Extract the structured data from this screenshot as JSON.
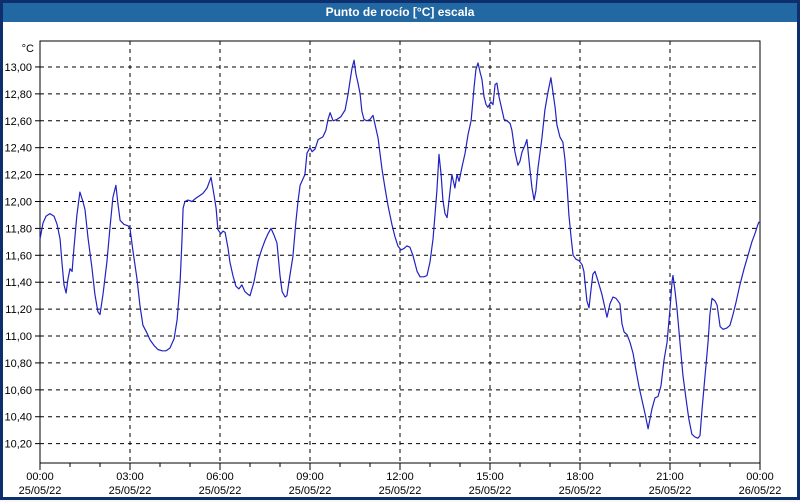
{
  "window": {
    "title": "Punto de rocío [°C] escala"
  },
  "colors": {
    "frame": "#0e2f6e",
    "titlebar_bg": "#2268a2",
    "title_text": "#ffffff",
    "plot_bg": "#ffffff",
    "grid": "#000000",
    "axis": "#000000",
    "tick_label": "#000000",
    "line": "#2222c2"
  },
  "chart_data": {
    "type": "line",
    "title": "Punto de rocío [°C] escala",
    "series_name": "Punto de rocío",
    "y_unit": "°C",
    "decimal_separator": ",",
    "grid": "dashed",
    "legend": "none",
    "ylim": [
      10.056,
      13.193
    ],
    "y_ticks": [
      13.0,
      12.8,
      12.6,
      12.4,
      12.2,
      12.0,
      11.8,
      11.6,
      11.4,
      11.2,
      11.0,
      10.8,
      10.6,
      10.4,
      10.2
    ],
    "x_range_hours": [
      0,
      24
    ],
    "x_minor_tick_every_hours": 1,
    "x_major_ticks": [
      {
        "hour": 0,
        "time": "00:00",
        "date": "25/05/22"
      },
      {
        "hour": 3,
        "time": "03:00",
        "date": "25/05/22"
      },
      {
        "hour": 6,
        "time": "06:00",
        "date": "25/05/22"
      },
      {
        "hour": 9,
        "time": "09:00",
        "date": "25/05/22"
      },
      {
        "hour": 12,
        "time": "12:00",
        "date": "25/05/22"
      },
      {
        "hour": 15,
        "time": "15:00",
        "date": "25/05/22"
      },
      {
        "hour": 18,
        "time": "18:00",
        "date": "25/05/22"
      },
      {
        "hour": 21,
        "time": "21:00",
        "date": "25/05/22"
      },
      {
        "hour": 24,
        "time": "00:00",
        "date": "26/05/22"
      }
    ],
    "points": [
      [
        0,
        11.72
      ],
      [
        0.1,
        11.84
      ],
      [
        0.2,
        11.89
      ],
      [
        0.33,
        11.91
      ],
      [
        0.47,
        11.89
      ],
      [
        0.57,
        11.83
      ],
      [
        0.67,
        11.72
      ],
      [
        0.73,
        11.55
      ],
      [
        0.8,
        11.38
      ],
      [
        0.87,
        11.32
      ],
      [
        0.93,
        11.42
      ],
      [
        1,
        11.5
      ],
      [
        1.07,
        11.48
      ],
      [
        1.13,
        11.65
      ],
      [
        1.23,
        11.9
      ],
      [
        1.33,
        12.07
      ],
      [
        1.43,
        12.0
      ],
      [
        1.5,
        11.94
      ],
      [
        1.6,
        11.73
      ],
      [
        1.73,
        11.51
      ],
      [
        1.83,
        11.31
      ],
      [
        1.93,
        11.18
      ],
      [
        2,
        11.16
      ],
      [
        2.1,
        11.31
      ],
      [
        2.23,
        11.55
      ],
      [
        2.33,
        11.8
      ],
      [
        2.43,
        12.03
      ],
      [
        2.53,
        12.12
      ],
      [
        2.6,
        11.98
      ],
      [
        2.67,
        11.86
      ],
      [
        2.8,
        11.83
      ],
      [
        2.93,
        11.82
      ],
      [
        3,
        11.8
      ],
      [
        3.1,
        11.63
      ],
      [
        3.23,
        11.43
      ],
      [
        3.33,
        11.23
      ],
      [
        3.43,
        11.08
      ],
      [
        3.57,
        11.02
      ],
      [
        3.67,
        10.97
      ],
      [
        3.8,
        10.93
      ],
      [
        3.93,
        10.9
      ],
      [
        4.07,
        10.89
      ],
      [
        4.2,
        10.89
      ],
      [
        4.33,
        10.91
      ],
      [
        4.47,
        10.98
      ],
      [
        4.57,
        11.12
      ],
      [
        4.67,
        11.4
      ],
      [
        4.73,
        11.7
      ],
      [
        4.77,
        11.95
      ],
      [
        4.83,
        12.0
      ],
      [
        4.93,
        12.01
      ],
      [
        5.07,
        12.0
      ],
      [
        5.17,
        12.02
      ],
      [
        5.3,
        12.04
      ],
      [
        5.43,
        12.06
      ],
      [
        5.57,
        12.1
      ],
      [
        5.7,
        12.18
      ],
      [
        5.8,
        12.05
      ],
      [
        5.87,
        11.95
      ],
      [
        5.93,
        11.79
      ],
      [
        6.03,
        11.76
      ],
      [
        6.1,
        11.78
      ],
      [
        6.17,
        11.77
      ],
      [
        6.27,
        11.65
      ],
      [
        6.33,
        11.55
      ],
      [
        6.43,
        11.45
      ],
      [
        6.53,
        11.37
      ],
      [
        6.63,
        11.35
      ],
      [
        6.73,
        11.38
      ],
      [
        6.83,
        11.33
      ],
      [
        6.93,
        11.31
      ],
      [
        7,
        11.3
      ],
      [
        7.13,
        11.4
      ],
      [
        7.27,
        11.56
      ],
      [
        7.4,
        11.65
      ],
      [
        7.5,
        11.71
      ],
      [
        7.6,
        11.76
      ],
      [
        7.7,
        11.8
      ],
      [
        7.8,
        11.75
      ],
      [
        7.9,
        11.69
      ],
      [
        8,
        11.45
      ],
      [
        8.07,
        11.33
      ],
      [
        8.17,
        11.29
      ],
      [
        8.23,
        11.3
      ],
      [
        8.33,
        11.45
      ],
      [
        8.43,
        11.59
      ],
      [
        8.53,
        11.85
      ],
      [
        8.6,
        12.0
      ],
      [
        8.67,
        12.12
      ],
      [
        8.77,
        12.17
      ],
      [
        8.83,
        12.2
      ],
      [
        8.9,
        12.36
      ],
      [
        9,
        12.4
      ],
      [
        9.07,
        12.37
      ],
      [
        9.17,
        12.39
      ],
      [
        9.27,
        12.46
      ],
      [
        9.43,
        12.48
      ],
      [
        9.53,
        12.53
      ],
      [
        9.6,
        12.61
      ],
      [
        9.67,
        12.66
      ],
      [
        9.77,
        12.6
      ],
      [
        9.9,
        12.61
      ],
      [
        10.03,
        12.63
      ],
      [
        10.17,
        12.68
      ],
      [
        10.27,
        12.8
      ],
      [
        10.33,
        12.89
      ],
      [
        10.4,
        12.99
      ],
      [
        10.47,
        13.05
      ],
      [
        10.53,
        12.95
      ],
      [
        10.6,
        12.88
      ],
      [
        10.67,
        12.8
      ],
      [
        10.73,
        12.67
      ],
      [
        10.8,
        12.61
      ],
      [
        10.9,
        12.6
      ],
      [
        11,
        12.61
      ],
      [
        11.1,
        12.64
      ],
      [
        11.17,
        12.57
      ],
      [
        11.27,
        12.47
      ],
      [
        11.4,
        12.24
      ],
      [
        11.5,
        12.1
      ],
      [
        11.6,
        11.97
      ],
      [
        11.73,
        11.83
      ],
      [
        11.83,
        11.74
      ],
      [
        11.93,
        11.67
      ],
      [
        12.03,
        11.64
      ],
      [
        12.13,
        11.65
      ],
      [
        12.23,
        11.67
      ],
      [
        12.33,
        11.66
      ],
      [
        12.43,
        11.6
      ],
      [
        12.57,
        11.48
      ],
      [
        12.67,
        11.44
      ],
      [
        12.8,
        11.44
      ],
      [
        12.9,
        11.45
      ],
      [
        13,
        11.55
      ],
      [
        13.1,
        11.72
      ],
      [
        13.17,
        11.91
      ],
      [
        13.23,
        12.08
      ],
      [
        13.3,
        12.35
      ],
      [
        13.37,
        12.2
      ],
      [
        13.43,
        12.01
      ],
      [
        13.5,
        11.91
      ],
      [
        13.57,
        11.88
      ],
      [
        13.67,
        12.08
      ],
      [
        13.73,
        12.2
      ],
      [
        13.83,
        12.1
      ],
      [
        13.9,
        12.2
      ],
      [
        13.97,
        12.15
      ],
      [
        14.07,
        12.26
      ],
      [
        14.17,
        12.36
      ],
      [
        14.27,
        12.5
      ],
      [
        14.37,
        12.6
      ],
      [
        14.47,
        12.85
      ],
      [
        14.53,
        12.98
      ],
      [
        14.6,
        13.03
      ],
      [
        14.67,
        12.96
      ],
      [
        14.73,
        12.91
      ],
      [
        14.8,
        12.78
      ],
      [
        14.87,
        12.72
      ],
      [
        14.93,
        12.7
      ],
      [
        15.03,
        12.74
      ],
      [
        15.1,
        12.72
      ],
      [
        15.17,
        12.87
      ],
      [
        15.23,
        12.88
      ],
      [
        15.3,
        12.78
      ],
      [
        15.4,
        12.68
      ],
      [
        15.47,
        12.61
      ],
      [
        15.57,
        12.6
      ],
      [
        15.67,
        12.58
      ],
      [
        15.73,
        12.53
      ],
      [
        15.83,
        12.37
      ],
      [
        15.93,
        12.27
      ],
      [
        16,
        12.3
      ],
      [
        16.07,
        12.37
      ],
      [
        16.17,
        12.42
      ],
      [
        16.23,
        12.46
      ],
      [
        16.33,
        12.24
      ],
      [
        16.4,
        12.1
      ],
      [
        16.47,
        12.01
      ],
      [
        16.53,
        12.08
      ],
      [
        16.6,
        12.25
      ],
      [
        16.73,
        12.47
      ],
      [
        16.83,
        12.68
      ],
      [
        16.93,
        12.81
      ],
      [
        17.03,
        12.92
      ],
      [
        17.1,
        12.81
      ],
      [
        17.17,
        12.7
      ],
      [
        17.23,
        12.57
      ],
      [
        17.33,
        12.48
      ],
      [
        17.43,
        12.44
      ],
      [
        17.5,
        12.31
      ],
      [
        17.57,
        12.11
      ],
      [
        17.63,
        11.9
      ],
      [
        17.7,
        11.74
      ],
      [
        17.77,
        11.6
      ],
      [
        17.87,
        11.57
      ],
      [
        17.97,
        11.56
      ],
      [
        18.07,
        11.53
      ],
      [
        18.13,
        11.48
      ],
      [
        18.23,
        11.26
      ],
      [
        18.3,
        11.21
      ],
      [
        18.37,
        11.35
      ],
      [
        18.43,
        11.46
      ],
      [
        18.5,
        11.48
      ],
      [
        18.6,
        11.41
      ],
      [
        18.73,
        11.31
      ],
      [
        18.83,
        11.21
      ],
      [
        18.9,
        11.14
      ],
      [
        19,
        11.24
      ],
      [
        19.1,
        11.29
      ],
      [
        19.2,
        11.28
      ],
      [
        19.33,
        11.24
      ],
      [
        19.4,
        11.09
      ],
      [
        19.47,
        11.03
      ],
      [
        19.57,
        11.01
      ],
      [
        19.67,
        10.95
      ],
      [
        19.77,
        10.87
      ],
      [
        19.87,
        10.74
      ],
      [
        19.97,
        10.62
      ],
      [
        20.07,
        10.52
      ],
      [
        20.17,
        10.42
      ],
      [
        20.27,
        10.31
      ],
      [
        20.33,
        10.38
      ],
      [
        20.4,
        10.46
      ],
      [
        20.5,
        10.54
      ],
      [
        20.6,
        10.55
      ],
      [
        20.7,
        10.63
      ],
      [
        20.8,
        10.82
      ],
      [
        20.9,
        10.95
      ],
      [
        21,
        11.2
      ],
      [
        21.07,
        11.41
      ],
      [
        21.1,
        11.45
      ],
      [
        21.17,
        11.33
      ],
      [
        21.23,
        11.21
      ],
      [
        21.33,
        10.96
      ],
      [
        21.43,
        10.71
      ],
      [
        21.53,
        10.54
      ],
      [
        21.63,
        10.38
      ],
      [
        21.73,
        10.27
      ],
      [
        21.83,
        10.25
      ],
      [
        21.93,
        10.24
      ],
      [
        22,
        10.26
      ],
      [
        22.07,
        10.46
      ],
      [
        22.17,
        10.71
      ],
      [
        22.27,
        10.96
      ],
      [
        22.33,
        11.16
      ],
      [
        22.4,
        11.28
      ],
      [
        22.5,
        11.26
      ],
      [
        22.57,
        11.23
      ],
      [
        22.67,
        11.07
      ],
      [
        22.77,
        11.05
      ],
      [
        22.9,
        11.06
      ],
      [
        23,
        11.08
      ],
      [
        23.1,
        11.16
      ],
      [
        23.2,
        11.25
      ],
      [
        23.33,
        11.38
      ],
      [
        23.47,
        11.5
      ],
      [
        23.6,
        11.6
      ],
      [
        23.73,
        11.7
      ],
      [
        23.83,
        11.76
      ],
      [
        23.93,
        11.83
      ],
      [
        23.97,
        11.85
      ]
    ]
  }
}
